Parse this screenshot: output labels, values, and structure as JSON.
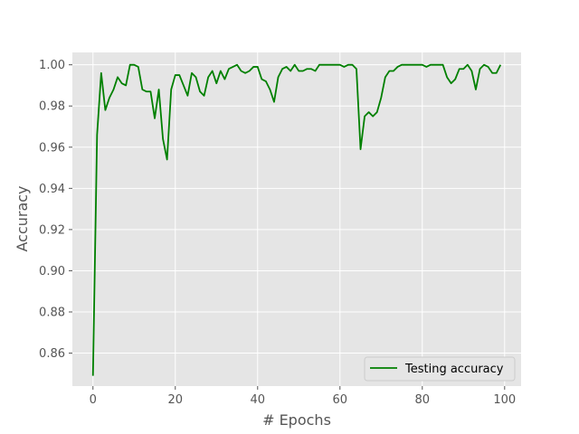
{
  "chart_data": {
    "type": "line",
    "title": "",
    "xlabel": "# Epochs",
    "ylabel": "Accuracy",
    "xlim": [
      -5,
      104
    ],
    "ylim": [
      0.844,
      1.006
    ],
    "xticks": [
      0,
      20,
      40,
      60,
      80,
      100
    ],
    "yticks": [
      0.86,
      0.88,
      0.9,
      0.92,
      0.94,
      0.96,
      0.98,
      1.0
    ],
    "xtick_labels": [
      "0",
      "20",
      "40",
      "60",
      "80",
      "100"
    ],
    "ytick_labels": [
      "0.86",
      "0.88",
      "0.90",
      "0.92",
      "0.94",
      "0.96",
      "0.98",
      "1.00"
    ],
    "grid": true,
    "legend_position": "lower-right",
    "colors": {
      "background": "#e5e5e5",
      "grid": "#ffffff",
      "series": "#008000",
      "text": "#555555"
    },
    "series": [
      {
        "name": "Testing accuracy",
        "x": [
          0,
          1,
          2,
          3,
          4,
          5,
          6,
          7,
          8,
          9,
          10,
          11,
          12,
          13,
          14,
          15,
          16,
          17,
          18,
          19,
          20,
          21,
          22,
          23,
          24,
          25,
          26,
          27,
          28,
          29,
          30,
          31,
          32,
          33,
          34,
          35,
          36,
          37,
          38,
          39,
          40,
          41,
          42,
          43,
          44,
          45,
          46,
          47,
          48,
          49,
          50,
          51,
          52,
          53,
          54,
          55,
          56,
          57,
          58,
          59,
          60,
          61,
          62,
          63,
          64,
          65,
          66,
          67,
          68,
          69,
          70,
          71,
          72,
          73,
          74,
          75,
          76,
          77,
          78,
          79,
          80,
          81,
          82,
          83,
          84,
          85,
          86,
          87,
          88,
          89,
          90,
          91,
          92,
          93,
          94,
          95,
          96,
          97,
          98,
          99
        ],
        "values": [
          0.849,
          0.966,
          0.996,
          0.978,
          0.984,
          0.988,
          0.994,
          0.991,
          0.99,
          1.0,
          1.0,
          0.999,
          0.988,
          0.987,
          0.987,
          0.974,
          0.988,
          0.964,
          0.954,
          0.988,
          0.995,
          0.995,
          0.99,
          0.985,
          0.996,
          0.994,
          0.987,
          0.985,
          0.994,
          0.997,
          0.991,
          0.997,
          0.993,
          0.998,
          0.999,
          1.0,
          0.997,
          0.996,
          0.997,
          0.999,
          0.999,
          0.993,
          0.992,
          0.988,
          0.982,
          0.994,
          0.998,
          0.999,
          0.997,
          1.0,
          0.997,
          0.997,
          0.998,
          0.998,
          0.997,
          1.0,
          1.0,
          1.0,
          1.0,
          1.0,
          1.0,
          0.999,
          1.0,
          1.0,
          0.998,
          0.959,
          0.975,
          0.977,
          0.975,
          0.977,
          0.984,
          0.994,
          0.997,
          0.997,
          0.999,
          1.0,
          1.0,
          1.0,
          1.0,
          1.0,
          1.0,
          0.999,
          1.0,
          1.0,
          1.0,
          1.0,
          0.994,
          0.991,
          0.993,
          0.998,
          0.998,
          1.0,
          0.997,
          0.988,
          0.998,
          1.0,
          0.999,
          0.996,
          0.996,
          1.0
        ]
      }
    ]
  }
}
